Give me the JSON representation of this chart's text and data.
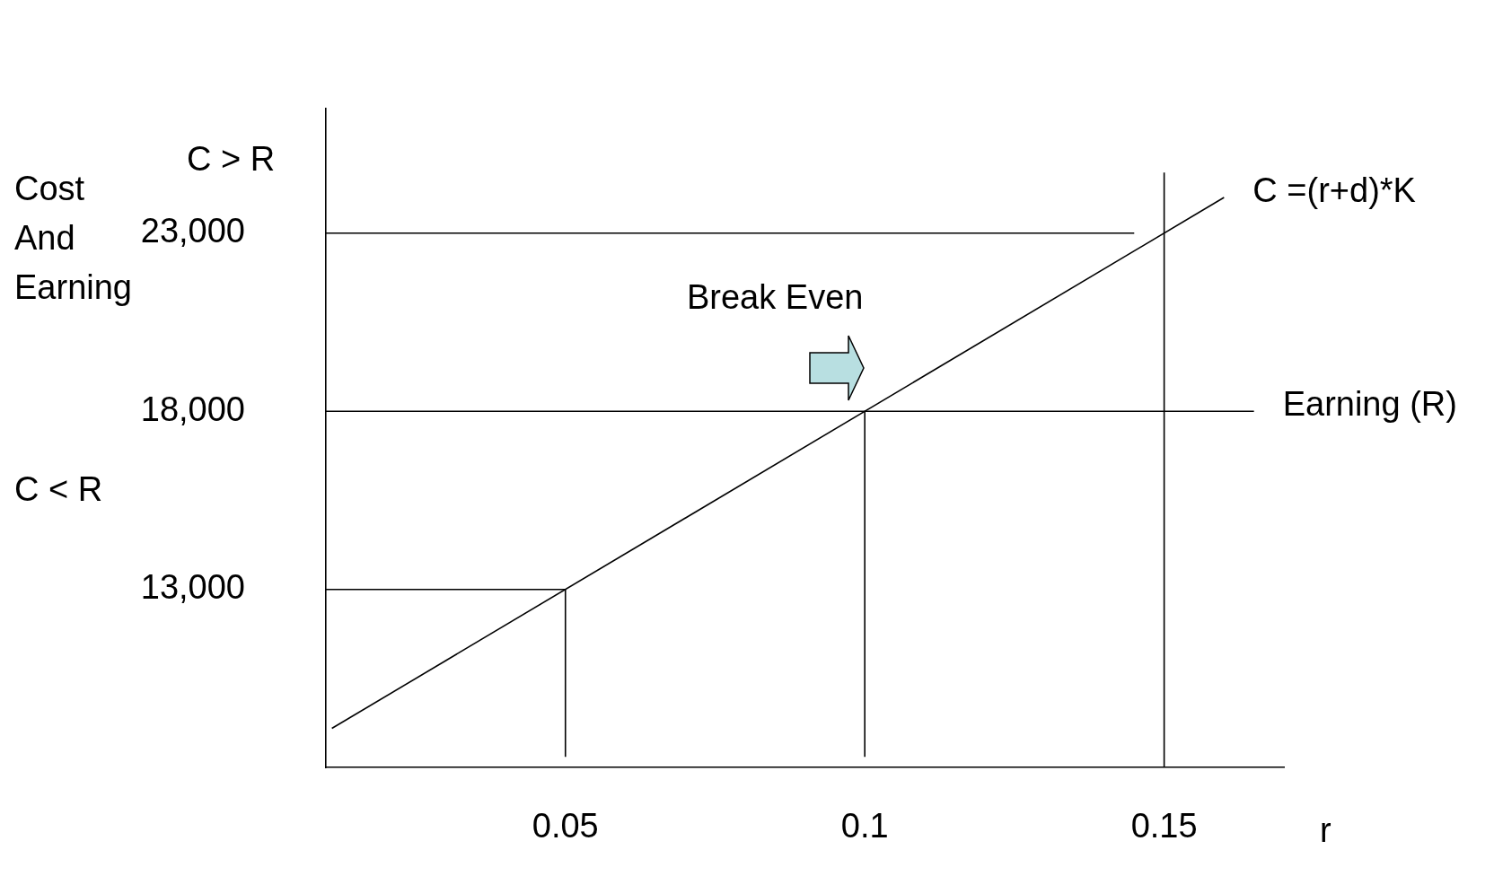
{
  "chart_data": {
    "type": "line",
    "xlabel": "r",
    "ylabel": "Cost And Earning",
    "xlim": [
      0.01,
      0.17
    ],
    "ylim": [
      8000,
      26500
    ],
    "xticks": [
      0.05,
      0.1,
      0.15
    ],
    "yticks": [
      {
        "value": 13000,
        "label": "13,000"
      },
      {
        "value": 18000,
        "label": "18,000"
      },
      {
        "value": 23000,
        "label": "23,000"
      }
    ],
    "series": [
      {
        "name": "C =(r+d)*K",
        "color": "#000000",
        "x": [
          0.011,
          0.16
        ],
        "values": [
          9100,
          24000
        ]
      },
      {
        "name": "Earning (R)",
        "color": "#000000",
        "x": [
          0.01,
          0.165
        ],
        "values": [
          18000,
          18000
        ]
      },
      {
        "color": "#000000",
        "x": [
          0.01,
          0.145
        ],
        "values": [
          23000,
          23000
        ]
      },
      {
        "color": "#000000",
        "x": [
          0.01,
          0.05
        ],
        "values": [
          13000,
          13000
        ]
      },
      {
        "color": "#000000",
        "x": [
          0.05,
          0.05
        ],
        "values": [
          8300,
          13000
        ]
      },
      {
        "color": "#000000",
        "x": [
          0.1,
          0.1
        ],
        "values": [
          8300,
          18000
        ]
      },
      {
        "color": "#000000",
        "x": [
          0.15,
          0.15
        ],
        "values": [
          8000,
          24700
        ]
      }
    ],
    "annotations": [
      "C > R",
      "C < R",
      {
        "text": "Break Even",
        "x": 0.1,
        "y": 18000
      }
    ],
    "grid": false,
    "legend": false,
    "marker": "none",
    "line_style": "solid"
  }
}
